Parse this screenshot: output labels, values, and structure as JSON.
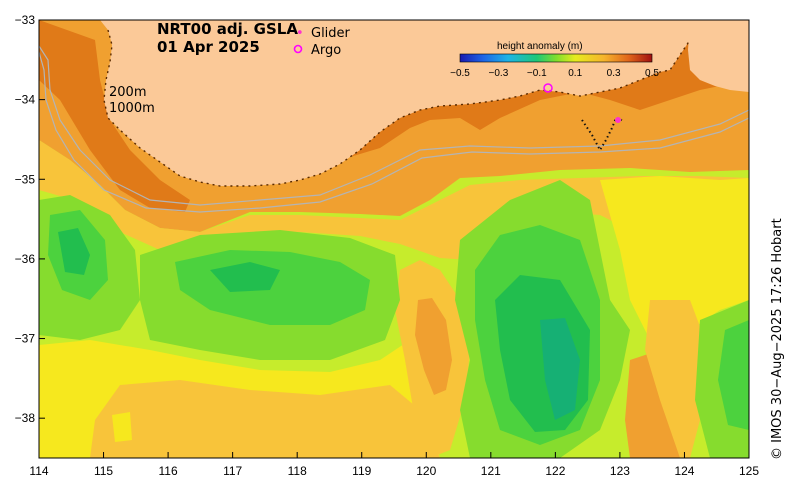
{
  "title": {
    "product": "NRT00 adj. GSLA",
    "date": "01 Apr 2025"
  },
  "legend": {
    "glider_label": "Glider",
    "argo_label": "Argo",
    "glider_color": "#ff33cc",
    "argo_color": "#ff00ff"
  },
  "depth_labels": {
    "shallow": "200m",
    "deep": "1000m"
  },
  "colorbar": {
    "title": "height anomaly (m)",
    "ticks": [
      "−0.5",
      "−0.3",
      "−0.1",
      "0.1",
      "0.3",
      "0.5"
    ],
    "min": -0.5,
    "max": 0.5
  },
  "credit": "© IMOS 30−Aug−2025 17:26 Hobart",
  "x_ticks": [
    "114",
    "115",
    "116",
    "117",
    "118",
    "119",
    "120",
    "121",
    "122",
    "123",
    "124",
    "125"
  ],
  "y_ticks": [
    "−33",
    "−34",
    "−35",
    "−36",
    "−37",
    "−38"
  ],
  "extent": {
    "lon_min": 114,
    "lon_max": 125,
    "lat_max": -33,
    "lat_min": -38.5
  },
  "colors": {
    "land": "#fbc998",
    "dark_orange": "#e07a18",
    "orange": "#f0a030",
    "light_orange": "#f8c43a",
    "yellow": "#f6e81e",
    "yellow_green": "#c6ec2c",
    "light_green": "#86dc2e",
    "green": "#4cd23e",
    "dark_green": "#22be4e",
    "teal": "#16b074",
    "contour": "#b4b4b4"
  }
}
